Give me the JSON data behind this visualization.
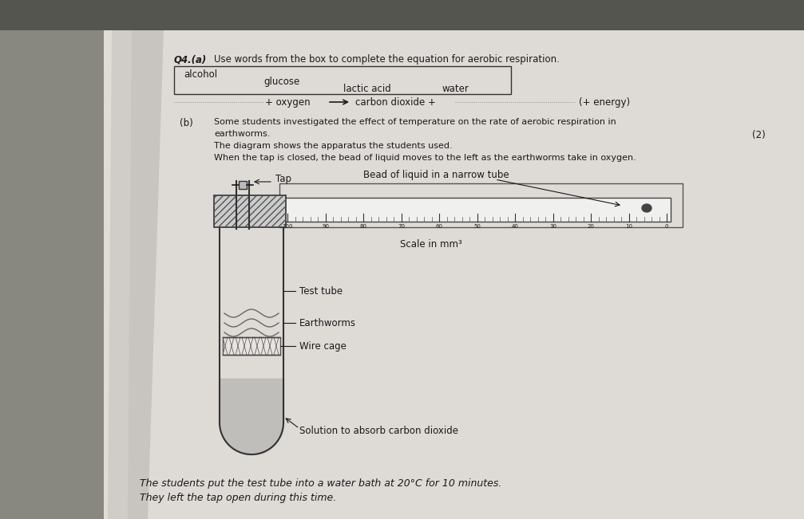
{
  "bg_color": "#b8b4b0",
  "paper_color": "#e2dedd",
  "text_color": "#1a1a1a",
  "q4a_label": "Q4.(a)",
  "q4a_instruction": "Use words from the box to complete the equation for aerobic respiration.",
  "box_words": [
    "alcohol",
    "glucose",
    "lactic acid",
    "water"
  ],
  "equation_left": "+ oxygen",
  "equation_right": "carbon dioxide +",
  "equation_end": "(+ energy)",
  "qb_label": "(b)",
  "qb_text1": "Some students investigated the effect of temperature on the rate of aerobic respiration in",
  "qb_text2": "earthworms.",
  "qb_text3": "The diagram shows the apparatus the students used.",
  "qb_text4": "When the tap is closed, the bead of liquid moves to the left as the earthworms take in oxygen.",
  "tap_label": "Tap",
  "bead_label": "Bead of liquid in a narrow tube",
  "scale_label": "Scale in mm³",
  "test_tube_label": "Test tube",
  "earthworms_label": "Earthworms",
  "wire_cage_label": "Wire cage",
  "solution_label": "Solution to absorb carbon dioxide",
  "bottom_text1": "The students put the test tube into a water bath at 20°C for 10 minutes.",
  "bottom_text2": "They left the tap open during this time.",
  "marks_label": "(2)",
  "scale_nums": [
    "100",
    "90",
    "80",
    "70",
    "60",
    "50",
    "40",
    "30",
    "20",
    "10",
    "0"
  ]
}
